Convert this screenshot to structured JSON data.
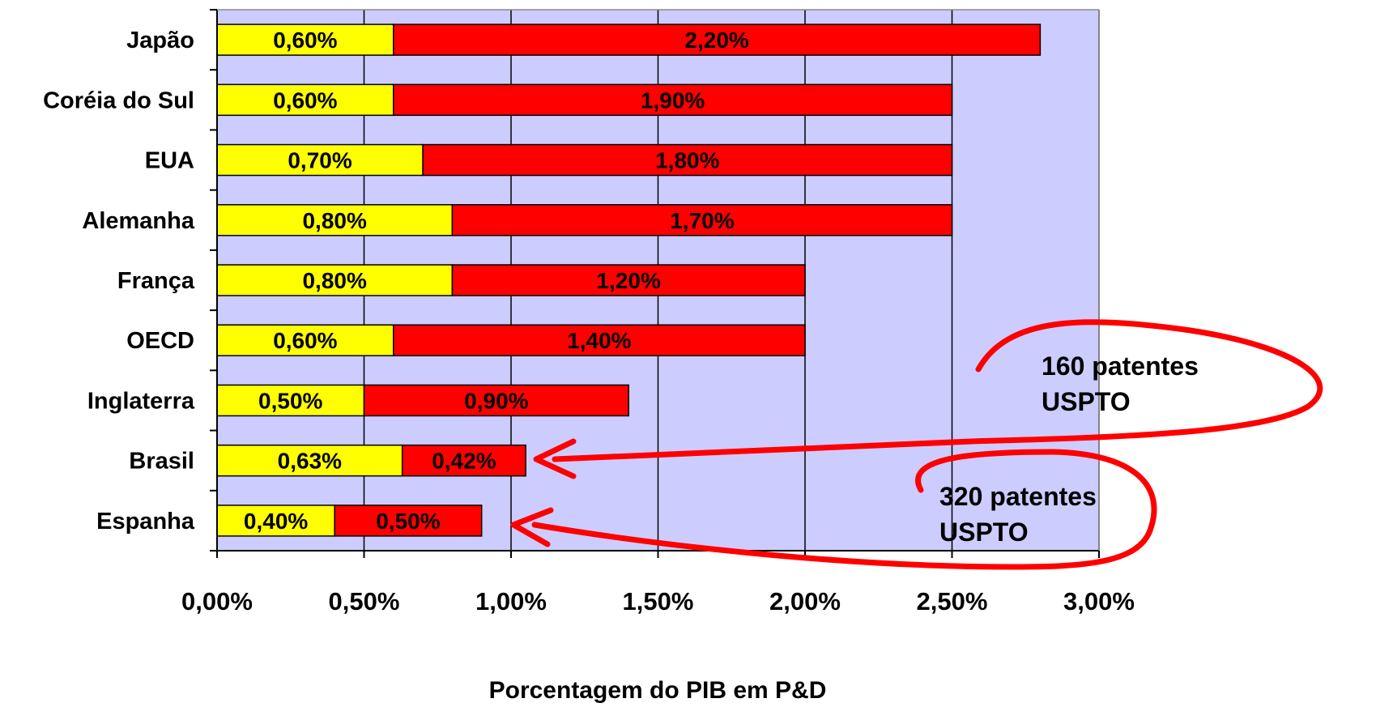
{
  "chart_data": {
    "type": "bar",
    "orientation": "horizontal",
    "stacked": true,
    "categories": [
      "Japão",
      "Coréia do Sul",
      "EUA",
      "Alemanha",
      "França",
      "OECD",
      "Inglaterra",
      "Brasil",
      "Espanha"
    ],
    "series": [
      {
        "values": [
          0.6,
          0.6,
          0.7,
          0.8,
          0.8,
          0.6,
          0.5,
          0.63,
          0.4
        ],
        "color": "#FFFF00"
      },
      {
        "values": [
          2.2,
          1.9,
          1.8,
          1.7,
          1.2,
          1.4,
          0.9,
          0.42,
          0.5
        ],
        "color": "#FF0000"
      }
    ],
    "data_labels": [
      [
        "0,60%",
        "0,60%",
        "0,70%",
        "0,80%",
        "0,80%",
        "0,60%",
        "0,50%",
        "0,63%",
        "0,40%"
      ],
      [
        "2,20%",
        "1,90%",
        "1,80%",
        "1,70%",
        "1,20%",
        "1,40%",
        "0,90%",
        "0,42%",
        "0,50%"
      ]
    ],
    "xlabel": "Porcentagem do PIB em P&D",
    "xlim": [
      0,
      3.0
    ],
    "xticks": [
      0,
      0.5,
      1.0,
      1.5,
      2.0,
      2.5,
      3.0
    ],
    "xtick_labels": [
      "0,00%",
      "0,50%",
      "1,00%",
      "1,50%",
      "2,00%",
      "2,50%",
      "3,00%"
    ],
    "grid": "vertical",
    "plot_background": "#CCCCFF",
    "annotations": [
      {
        "lines": [
          "160 patentes",
          "USPTO"
        ],
        "points_to": "Brasil"
      },
      {
        "lines": [
          "320 patentes",
          "USPTO"
        ],
        "points_to": "Espanha"
      }
    ],
    "annotation_color": "#FF0000"
  }
}
